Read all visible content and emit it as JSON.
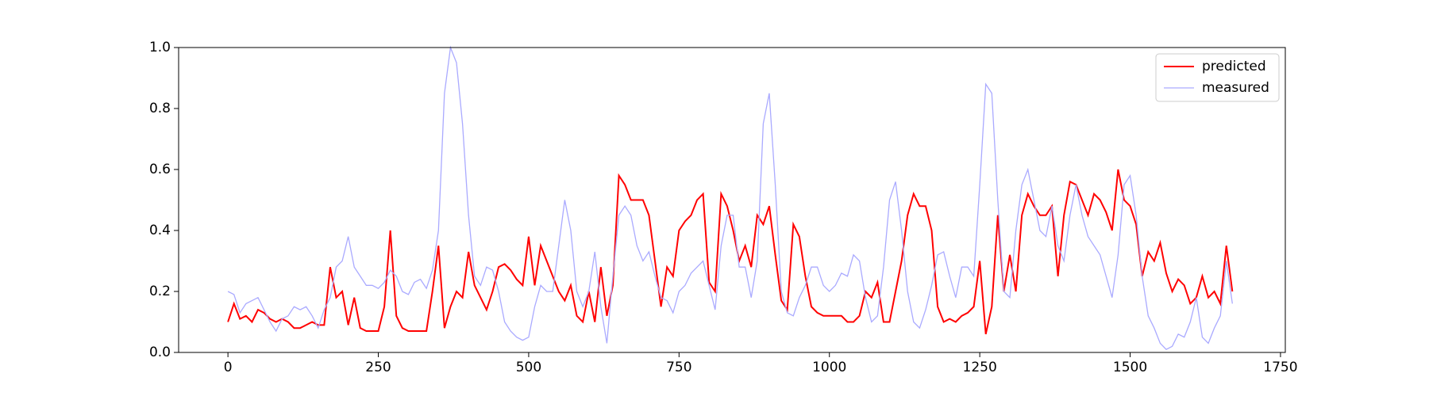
{
  "chart_data": {
    "type": "line",
    "x": [
      0,
      10,
      20,
      30,
      40,
      50,
      60,
      70,
      80,
      90,
      100,
      110,
      120,
      130,
      140,
      150,
      160,
      170,
      180,
      190,
      200,
      210,
      220,
      230,
      240,
      250,
      260,
      270,
      280,
      290,
      300,
      310,
      320,
      330,
      340,
      350,
      360,
      370,
      380,
      390,
      400,
      410,
      420,
      430,
      440,
      450,
      460,
      470,
      480,
      490,
      500,
      510,
      520,
      530,
      540,
      550,
      560,
      570,
      580,
      590,
      600,
      610,
      620,
      630,
      640,
      650,
      660,
      670,
      680,
      690,
      700,
      710,
      720,
      730,
      740,
      750,
      760,
      770,
      780,
      790,
      800,
      810,
      820,
      830,
      840,
      850,
      860,
      870,
      880,
      890,
      900,
      910,
      920,
      930,
      940,
      950,
      960,
      970,
      980,
      990,
      1000,
      1010,
      1020,
      1030,
      1040,
      1050,
      1060,
      1070,
      1080,
      1090,
      1100,
      1110,
      1120,
      1130,
      1140,
      1150,
      1160,
      1170,
      1180,
      1190,
      1200,
      1210,
      1220,
      1230,
      1240,
      1250,
      1260,
      1270,
      1280,
      1290,
      1300,
      1310,
      1320,
      1330,
      1340,
      1350,
      1360,
      1370,
      1380,
      1390,
      1400,
      1410,
      1420,
      1430,
      1440,
      1450,
      1460,
      1470,
      1480,
      1490,
      1500,
      1510,
      1520,
      1530,
      1540,
      1550,
      1560,
      1570,
      1580,
      1590,
      1600,
      1610,
      1620,
      1630,
      1640,
      1650,
      1660,
      1670
    ],
    "series": [
      {
        "name": "predicted",
        "color": "#ff0000",
        "values": [
          0.1,
          0.16,
          0.11,
          0.12,
          0.1,
          0.14,
          0.13,
          0.11,
          0.1,
          0.11,
          0.1,
          0.08,
          0.08,
          0.09,
          0.1,
          0.09,
          0.09,
          0.28,
          0.18,
          0.2,
          0.09,
          0.18,
          0.08,
          0.07,
          0.07,
          0.07,
          0.15,
          0.4,
          0.12,
          0.08,
          0.07,
          0.07,
          0.07,
          0.07,
          0.2,
          0.35,
          0.08,
          0.15,
          0.2,
          0.18,
          0.33,
          0.22,
          0.18,
          0.14,
          0.2,
          0.28,
          0.29,
          0.27,
          0.24,
          0.22,
          0.38,
          0.22,
          0.35,
          0.3,
          0.25,
          0.2,
          0.17,
          0.22,
          0.12,
          0.1,
          0.2,
          0.1,
          0.28,
          0.12,
          0.22,
          0.58,
          0.55,
          0.5,
          0.5,
          0.5,
          0.45,
          0.3,
          0.15,
          0.28,
          0.25,
          0.4,
          0.43,
          0.45,
          0.5,
          0.52,
          0.23,
          0.2,
          0.52,
          0.48,
          0.4,
          0.3,
          0.35,
          0.28,
          0.45,
          0.42,
          0.48,
          0.32,
          0.17,
          0.14,
          0.42,
          0.38,
          0.25,
          0.15,
          0.13,
          0.12,
          0.12,
          0.12,
          0.12,
          0.1,
          0.1,
          0.12,
          0.2,
          0.18,
          0.23,
          0.1,
          0.1,
          0.2,
          0.3,
          0.45,
          0.52,
          0.48,
          0.48,
          0.4,
          0.15,
          0.1,
          0.11,
          0.1,
          0.12,
          0.13,
          0.15,
          0.3,
          0.06,
          0.15,
          0.45,
          0.2,
          0.32,
          0.2,
          0.45,
          0.52,
          0.48,
          0.45,
          0.45,
          0.48,
          0.25,
          0.45,
          0.56,
          0.55,
          0.5,
          0.45,
          0.52,
          0.5,
          0.46,
          0.4,
          0.6,
          0.5,
          0.48,
          0.42,
          0.25,
          0.33,
          0.3,
          0.36,
          0.26,
          0.2,
          0.24,
          0.22,
          0.16,
          0.18,
          0.25,
          0.18,
          0.2,
          0.16,
          0.35,
          0.2
        ]
      },
      {
        "name": "measured",
        "color": "#aaaaff",
        "values": [
          0.2,
          0.19,
          0.13,
          0.16,
          0.17,
          0.18,
          0.14,
          0.1,
          0.07,
          0.11,
          0.12,
          0.15,
          0.14,
          0.15,
          0.12,
          0.08,
          0.14,
          0.18,
          0.28,
          0.3,
          0.38,
          0.28,
          0.25,
          0.22,
          0.22,
          0.21,
          0.23,
          0.27,
          0.25,
          0.2,
          0.19,
          0.23,
          0.24,
          0.21,
          0.27,
          0.4,
          0.85,
          1.0,
          0.95,
          0.75,
          0.45,
          0.25,
          0.22,
          0.28,
          0.27,
          0.2,
          0.1,
          0.07,
          0.05,
          0.04,
          0.05,
          0.15,
          0.22,
          0.2,
          0.2,
          0.35,
          0.5,
          0.4,
          0.2,
          0.15,
          0.2,
          0.33,
          0.15,
          0.03,
          0.25,
          0.45,
          0.48,
          0.45,
          0.35,
          0.3,
          0.33,
          0.25,
          0.18,
          0.17,
          0.13,
          0.2,
          0.22,
          0.26,
          0.28,
          0.3,
          0.22,
          0.14,
          0.35,
          0.45,
          0.45,
          0.28,
          0.28,
          0.18,
          0.3,
          0.75,
          0.85,
          0.55,
          0.2,
          0.13,
          0.12,
          0.18,
          0.22,
          0.28,
          0.28,
          0.22,
          0.2,
          0.22,
          0.26,
          0.25,
          0.32,
          0.3,
          0.18,
          0.1,
          0.12,
          0.28,
          0.5,
          0.56,
          0.4,
          0.2,
          0.1,
          0.08,
          0.14,
          0.22,
          0.32,
          0.33,
          0.25,
          0.18,
          0.28,
          0.28,
          0.25,
          0.55,
          0.88,
          0.85,
          0.5,
          0.2,
          0.18,
          0.4,
          0.55,
          0.6,
          0.5,
          0.4,
          0.38,
          0.48,
          0.35,
          0.3,
          0.45,
          0.55,
          0.45,
          0.38,
          0.35,
          0.32,
          0.25,
          0.18,
          0.32,
          0.55,
          0.58,
          0.45,
          0.25,
          0.12,
          0.08,
          0.03,
          0.01,
          0.02,
          0.06,
          0.05,
          0.1,
          0.18,
          0.05,
          0.03,
          0.08,
          0.12,
          0.3,
          0.16
        ]
      }
    ],
    "xlim": [
      -82,
      1758
    ],
    "ylim": [
      0,
      1
    ],
    "xticks": [
      0,
      250,
      500,
      750,
      1000,
      1250,
      1500,
      1750
    ],
    "yticks": [
      {
        "value": 0,
        "label": "0.0"
      },
      {
        "value": 0.2,
        "label": "0.2"
      },
      {
        "value": 0.4,
        "label": "0.4"
      },
      {
        "value": 0.6,
        "label": "0.6"
      },
      {
        "value": 0.8,
        "label": "0.8"
      },
      {
        "value": 1,
        "label": "1.0"
      }
    ],
    "legend": "upper right"
  }
}
